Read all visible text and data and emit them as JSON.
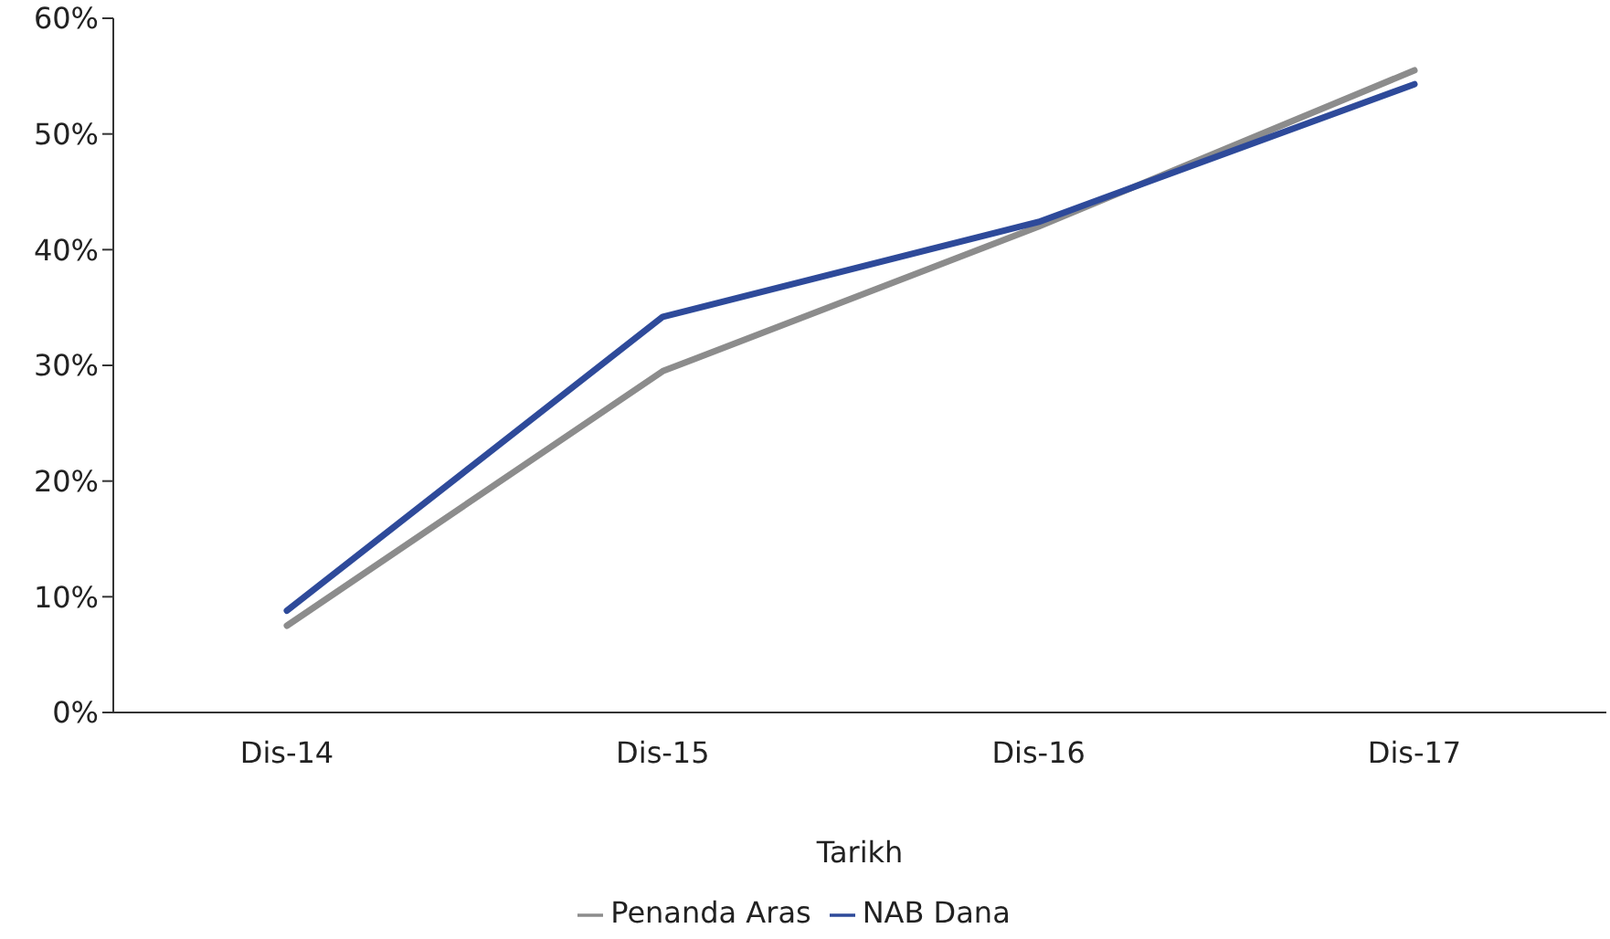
{
  "chart_data": {
    "type": "line",
    "xlabel": "Tarikh",
    "categories": [
      "Dis-14",
      "Dis-15",
      "Dis-16",
      "Dis-17"
    ],
    "series": [
      {
        "name": "Penanda Aras",
        "color": "#8c8c8c",
        "values": [
          7.5,
          29.5,
          42,
          55.5
        ]
      },
      {
        "name": "NAB Dana",
        "color": "#2e4a9a",
        "values": [
          8.8,
          34.2,
          42.4,
          54.3
        ]
      }
    ],
    "ylim": [
      0,
      60
    ],
    "yticks": [
      {
        "value": 0,
        "label": "0%"
      },
      {
        "value": 10,
        "label": "10%"
      },
      {
        "value": 20,
        "label": "20%"
      },
      {
        "value": 30,
        "label": "30%"
      },
      {
        "value": 40,
        "label": "40%"
      },
      {
        "value": 50,
        "label": "50%"
      },
      {
        "value": 60,
        "label": "60%"
      }
    ],
    "grid": false,
    "legend": "bottom",
    "marker": "none",
    "line_style": "solid"
  }
}
